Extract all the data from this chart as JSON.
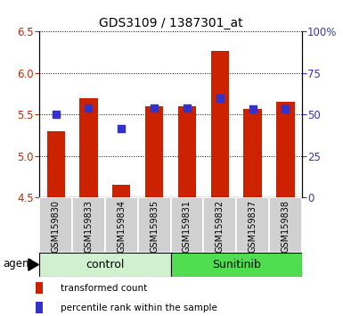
{
  "title": "GDS3109 / 1387301_at",
  "samples": [
    "GSM159830",
    "GSM159833",
    "GSM159834",
    "GSM159835",
    "GSM159831",
    "GSM159832",
    "GSM159837",
    "GSM159838"
  ],
  "red_values": [
    5.3,
    5.7,
    4.65,
    5.6,
    5.6,
    6.27,
    5.57,
    5.65
  ],
  "blue_values": [
    5.5,
    5.58,
    5.33,
    5.58,
    5.58,
    5.7,
    5.57,
    5.57
  ],
  "ymin": 4.5,
  "ymax": 6.5,
  "y_ticks_left": [
    4.5,
    5.0,
    5.5,
    6.0,
    6.5
  ],
  "right_tick_labels": [
    "0",
    "25",
    "50",
    "75",
    "100%"
  ],
  "right_tick_pct": [
    0,
    25,
    50,
    75,
    100
  ],
  "groups": [
    {
      "label": "control",
      "indices": [
        0,
        1,
        2,
        3
      ],
      "color": "#d0f0d0"
    },
    {
      "label": "Sunitinib",
      "indices": [
        4,
        5,
        6,
        7
      ],
      "color": "#50dd50"
    }
  ],
  "agent_label": "agent",
  "bar_color": "#cc2200",
  "dot_color": "#3333cc",
  "bar_bottom": 4.5,
  "bar_width": 0.55,
  "dot_size": 28,
  "legend_red_label": "transformed count",
  "legend_blue_label": "percentile rank within the sample",
  "tick_color_left": "#cc2200",
  "tick_color_right": "#3333cc",
  "label_bg_color": "#d0d0d0",
  "label_border_color": "#ffffff"
}
